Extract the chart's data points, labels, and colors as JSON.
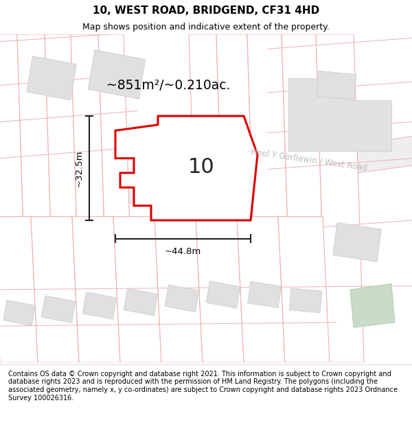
{
  "title": "10, WEST ROAD, BRIDGEND, CF31 4HD",
  "subtitle": "Map shows position and indicative extent of the property.",
  "footer": "Contains OS data © Crown copyright and database right 2021. This information is subject to Crown copyright and database rights 2023 and is reproduced with the permission of HM Land Registry. The polygons (including the associated geometry, namely x, y co-ordinates) are subject to Crown copyright and database rights 2023 Ordnance Survey 100026316.",
  "area_label": "~851m²/~0.210ac.",
  "number_label": "10",
  "road_label": "Heol Y Gorllewin / West Road",
  "width_label": "~44.8m",
  "height_label": "~32.5m",
  "map_bg": "#ffffff",
  "plot_edge_color": "#dd0000",
  "building_color": "#e0e0e0",
  "pink_line_color": "#f0b0b0",
  "dim_color": "#222222",
  "road_label_color": "#bbbbbb",
  "green_patch_color": "#c8dcc8",
  "title_fontsize": 11,
  "subtitle_fontsize": 9,
  "footer_fontsize": 7
}
